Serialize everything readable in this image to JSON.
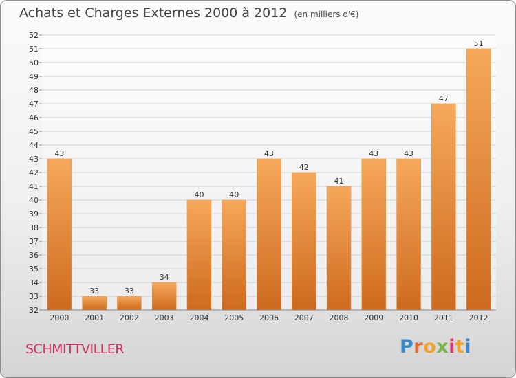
{
  "header": {
    "title": "Achats et Charges Externes 2000 à 2012",
    "unit": "(en milliers d'€)"
  },
  "footer": {
    "commune": "SCHMITTVILLER",
    "brand": {
      "text": "Proxiti",
      "letter_colors": [
        "#3a87c8",
        "#e0662c",
        "#f0a22b",
        "#7ab648",
        "#d23c6c",
        "#f0a22b",
        "#3a87c8"
      ]
    }
  },
  "colors": {
    "bar_light": "#f6a85a",
    "bar_dark": "#cd6a1f",
    "grid": "#d0d0d0",
    "axis_text": "#333333",
    "brand_red": "#d0345f"
  },
  "chart_data": {
    "type": "bar",
    "title": "Achats et Charges Externes 2000 à 2012",
    "xlabel": "",
    "ylabel": "",
    "categories": [
      "2000",
      "2001",
      "2002",
      "2003",
      "2004",
      "2005",
      "2006",
      "2007",
      "2008",
      "2009",
      "2010",
      "2011",
      "2012"
    ],
    "values": [
      43,
      33,
      33,
      34,
      40,
      40,
      43,
      42,
      41,
      43,
      43,
      47,
      51
    ],
    "ylim": [
      32,
      52
    ],
    "yticks": [
      32,
      33,
      34,
      35,
      36,
      37,
      38,
      39,
      40,
      41,
      42,
      43,
      44,
      45,
      46,
      47,
      48,
      49,
      50,
      51,
      52
    ],
    "grid": true,
    "legend": "none"
  }
}
